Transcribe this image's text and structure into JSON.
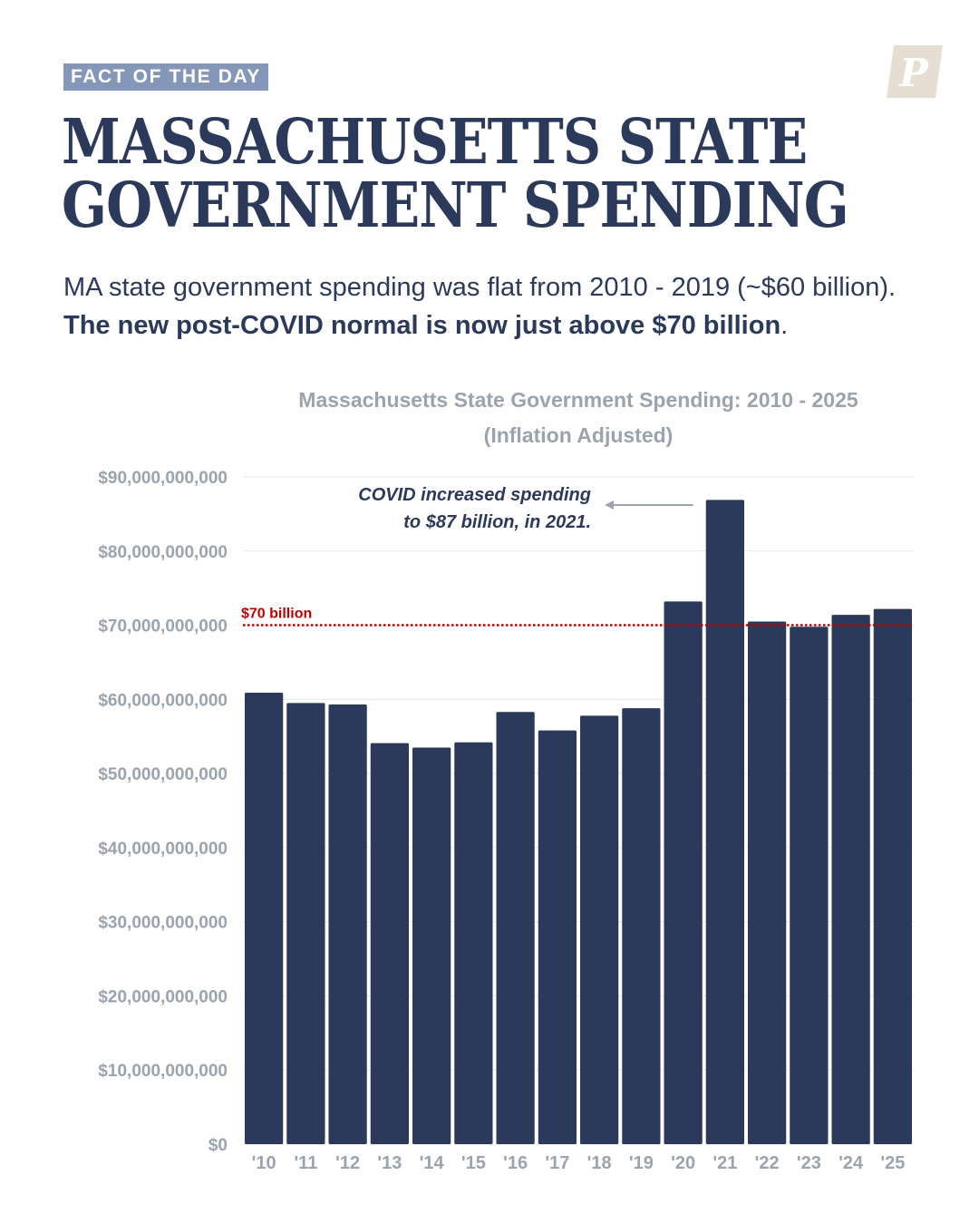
{
  "kicker": "FACT OF THE DAY",
  "logo_letter": "P",
  "headline": {
    "line1": "MASSACHUSETTS STATE",
    "line2": "GOVERNMENT SPENDING"
  },
  "subhead": {
    "plain": "MA state government spending was flat from 2010 - 2019 (~$60 billion). ",
    "bold": "The new post-COVID normal is now just above $70 billion",
    "end": "."
  },
  "colors": {
    "bar": "#2b3a5a",
    "reference_line": "#c00000",
    "kicker_bg": "#8597b9",
    "logo": "#e6ded3",
    "axis_text": "#9aa3ae"
  },
  "chart_data": {
    "type": "bar",
    "title": "Massachusetts State Government Spending: 2010 - 2025",
    "subtitle": "(Inflation Adjusted)",
    "xlabel": "",
    "ylabel": "",
    "categories": [
      "'10",
      "'11",
      "'12",
      "'13",
      "'14",
      "'15",
      "'16",
      "'17",
      "'18",
      "'19",
      "'20",
      "'21",
      "'22",
      "'23",
      "'24",
      "'25"
    ],
    "values": [
      60900000000,
      59500000000,
      59300000000,
      54100000000,
      53500000000,
      54200000000,
      58300000000,
      55800000000,
      57800000000,
      58800000000,
      73200000000,
      86900000000,
      70500000000,
      69800000000,
      71400000000,
      72200000000
    ],
    "ylim": [
      0,
      90000000000
    ],
    "yticks": [
      0,
      10000000000,
      20000000000,
      30000000000,
      40000000000,
      50000000000,
      60000000000,
      70000000000,
      80000000000,
      90000000000
    ],
    "ytick_labels": [
      "$0",
      "$10,000,000,000",
      "$20,000,000,000",
      "$30,000,000,000",
      "$40,000,000,000",
      "$50,000,000,000",
      "$60,000,000,000",
      "$70,000,000,000",
      "$80,000,000,000",
      "$90,000,000,000"
    ],
    "grid": true,
    "reference_line": {
      "value": 70000000000,
      "label": "$70 billion"
    },
    "annotation": {
      "lines": [
        "COVID increased spending",
        "to $87 billion, in 2021."
      ],
      "target_category": "'21"
    }
  }
}
